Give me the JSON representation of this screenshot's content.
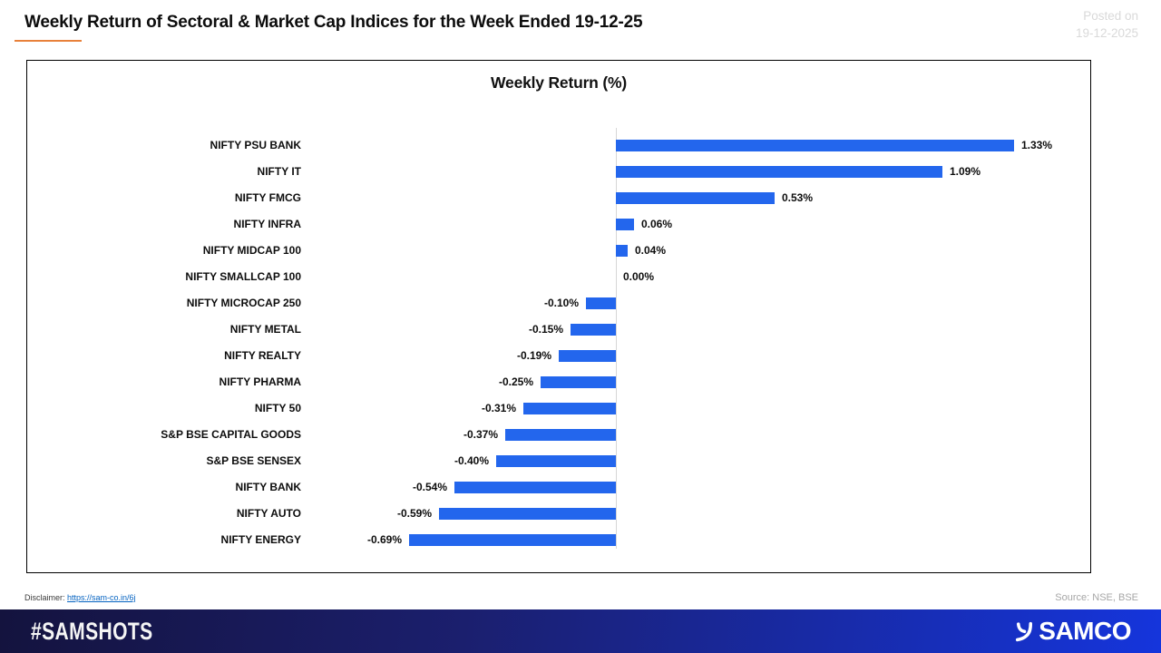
{
  "header": {
    "title": "Weekly Return of Sectoral & Market Cap Indices for the Week Ended 19-12-25",
    "posted_on_label": "Posted on",
    "posted_on_date": "19-12-2025"
  },
  "chart_data": {
    "type": "bar",
    "orientation": "horizontal",
    "title": "Weekly Return (%)",
    "categories": [
      "NIFTY PSU BANK",
      "NIFTY IT",
      "NIFTY FMCG",
      "NIFTY INFRA",
      "NIFTY MIDCAP 100",
      "NIFTY SMALLCAP 100",
      "NIFTY MICROCAP 250",
      "NIFTY METAL",
      "NIFTY REALTY",
      "NIFTY PHARMA",
      "NIFTY 50",
      "S&P BSE CAPITAL GOODS",
      "S&P BSE SENSEX",
      "NIFTY BANK",
      "NIFTY AUTO",
      "NIFTY ENERGY"
    ],
    "values": [
      1.33,
      1.09,
      0.53,
      0.06,
      0.04,
      0.0,
      -0.1,
      -0.15,
      -0.19,
      -0.25,
      -0.31,
      -0.37,
      -0.4,
      -0.54,
      -0.59,
      -0.69
    ],
    "value_labels": [
      "1.33%",
      "1.09%",
      "0.53%",
      "0.06%",
      "0.04%",
      "0.00%",
      "-0.10%",
      "-0.15%",
      "-0.19%",
      "-0.25%",
      "-0.31%",
      "-0.37%",
      "-0.40%",
      "-0.54%",
      "-0.59%",
      "-0.69%"
    ],
    "xlabel": "",
    "ylabel": "",
    "xlim": [
      -0.9,
      1.6
    ],
    "baseline": 0,
    "grid": false,
    "legend": false,
    "data_labels": true,
    "bar_color": "#2366ed",
    "axis_color": "#d6d6d6"
  },
  "footer": {
    "disclaimer_label": "Disclaimer:",
    "disclaimer_link": "https://sam-co.in/6j",
    "source": "Source: NSE, BSE",
    "hashtag": "#SAMSHOTS",
    "brand": "SAMCO"
  },
  "colors": {
    "title_accent_underline": "#e8813b",
    "posted_on_text": "#d9d9d9",
    "source_text": "#a6a6a6",
    "link_blue": "#0563c1",
    "footer_gradient_start": "#14133e",
    "footer_gradient_end": "#1535dc"
  }
}
